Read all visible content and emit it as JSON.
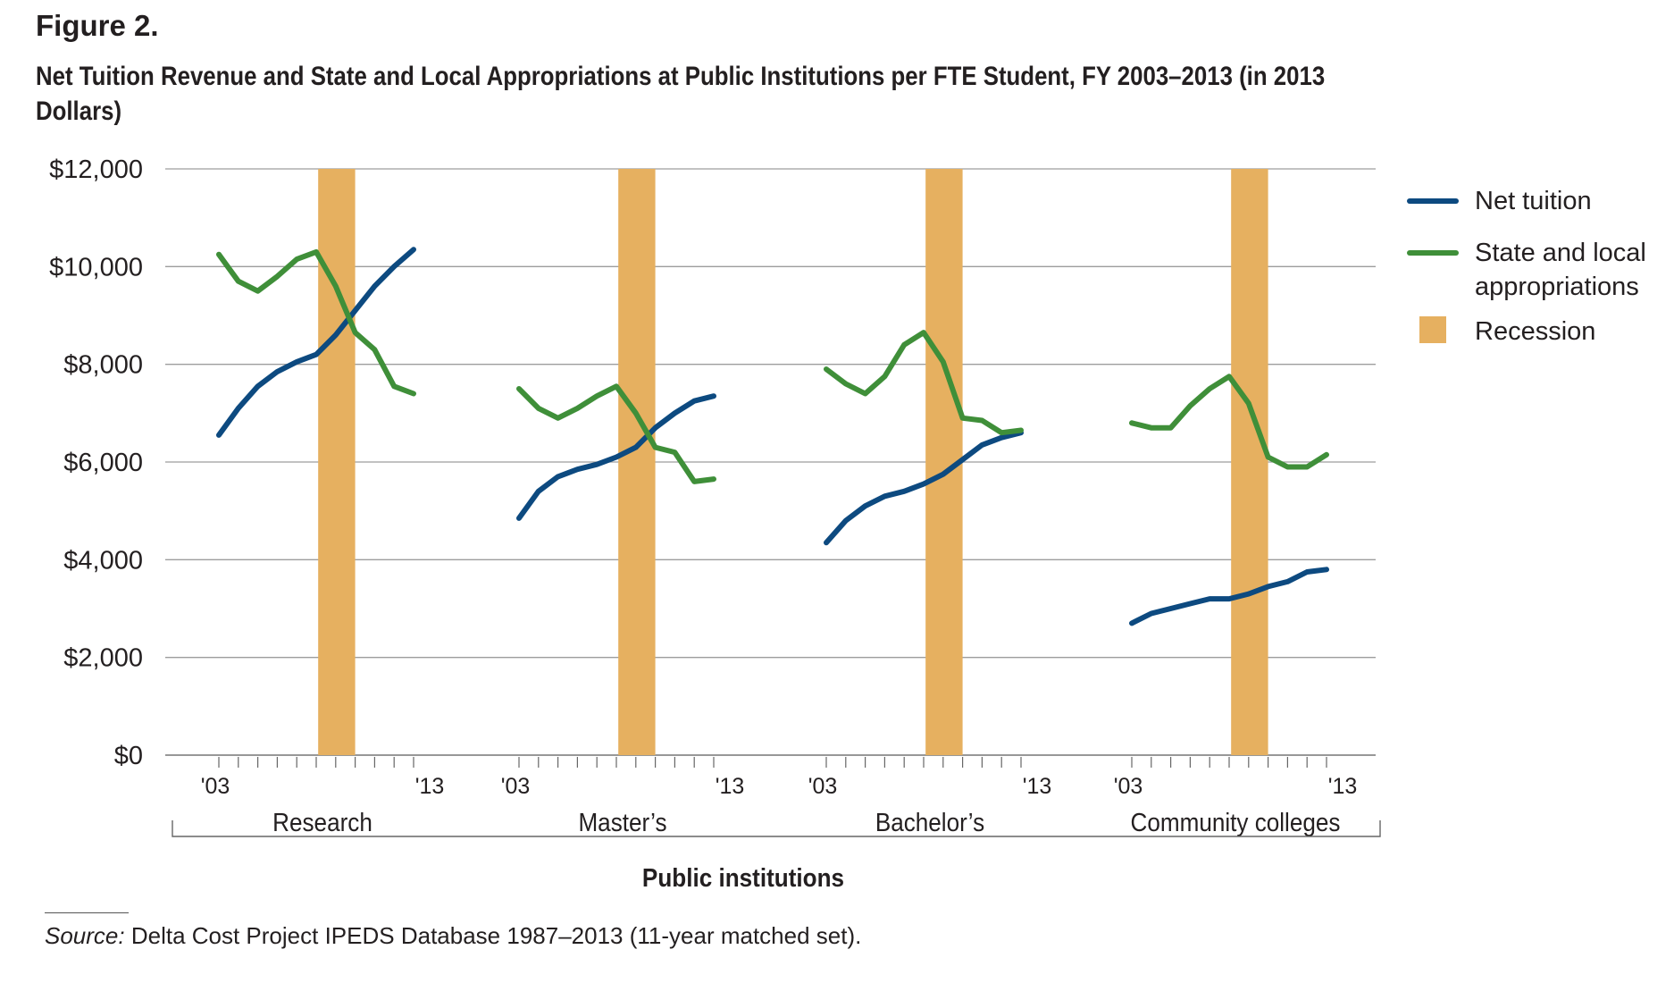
{
  "figure_label": "Figure 2.",
  "title": "Net Tuition Revenue and State and Local Appropriations at Public Institutions per FTE Student, FY 2003–2013 (in 2013 Dollars)",
  "source_label": "Source:",
  "source_text": " Delta Cost Project IPEDS Database 1987–2013 (11-year matched set).",
  "colors": {
    "net_tuition": "#0d4a80",
    "appropriations": "#3f8f39",
    "recession": "#e6b060",
    "grid": "#9d9d9d"
  },
  "legend": [
    {
      "label": "Net tuition",
      "kind": "line",
      "color_key": "net_tuition"
    },
    {
      "label": "State and local appropriations",
      "kind": "line",
      "color_key": "appropriations"
    },
    {
      "label": "Recession",
      "kind": "box",
      "color_key": "recession"
    }
  ],
  "chart_data": {
    "type": "line",
    "xlabel": "Public institutions",
    "ylabel": "",
    "ylim": [
      0,
      12000
    ],
    "yticks": [
      0,
      2000,
      4000,
      6000,
      8000,
      10000,
      12000
    ],
    "ytick_labels": [
      "$0",
      "$2,000",
      "$4,000",
      "$6,000",
      "$8,000",
      "$10,000",
      "$12,000"
    ],
    "grid": true,
    "legend_position": "right",
    "years": [
      2003,
      2004,
      2005,
      2006,
      2007,
      2008,
      2009,
      2010,
      2011,
      2012,
      2013
    ],
    "recession_years": [
      2008.1,
      2010.0
    ],
    "groups": [
      {
        "label": "Research",
        "start_label": "'03",
        "end_label": "'13",
        "series": [
          {
            "name": "Net tuition",
            "values": [
              6550,
              7100,
              7550,
              7850,
              8050,
              8200,
              8600,
              9100,
              9600,
              10000,
              10350
            ]
          },
          {
            "name": "State and local appropriations",
            "values": [
              10250,
              9700,
              9500,
              9800,
              10150,
              10300,
              9600,
              8650,
              8300,
              7550,
              7400
            ]
          }
        ]
      },
      {
        "label": "Master’s",
        "start_label": "'03",
        "end_label": "'13",
        "series": [
          {
            "name": "Net tuition",
            "values": [
              4850,
              5400,
              5700,
              5850,
              5950,
              6100,
              6300,
              6700,
              7000,
              7250,
              7350
            ]
          },
          {
            "name": "State and local appropriations",
            "values": [
              7500,
              7100,
              6900,
              7100,
              7350,
              7550,
              7000,
              6300,
              6200,
              5600,
              5650
            ]
          }
        ]
      },
      {
        "label": "Bachelor’s",
        "start_label": "'03",
        "end_label": "'13",
        "series": [
          {
            "name": "Net tuition",
            "values": [
              4350,
              4800,
              5100,
              5300,
              5400,
              5550,
              5750,
              6050,
              6350,
              6500,
              6600
            ]
          },
          {
            "name": "State and local appropriations",
            "values": [
              7900,
              7600,
              7400,
              7750,
              8400,
              8650,
              8050,
              6900,
              6850,
              6600,
              6650
            ]
          }
        ]
      },
      {
        "label": "Community colleges",
        "start_label": "'03",
        "end_label": "'13",
        "series": [
          {
            "name": "Net tuition",
            "values": [
              2700,
              2900,
              3000,
              3100,
              3200,
              3200,
              3300,
              3450,
              3550,
              3750,
              3800
            ]
          },
          {
            "name": "State and local appropriations",
            "values": [
              6800,
              6700,
              6700,
              7150,
              7500,
              7750,
              7200,
              6100,
              5900,
              5900,
              6150
            ]
          }
        ]
      }
    ]
  }
}
